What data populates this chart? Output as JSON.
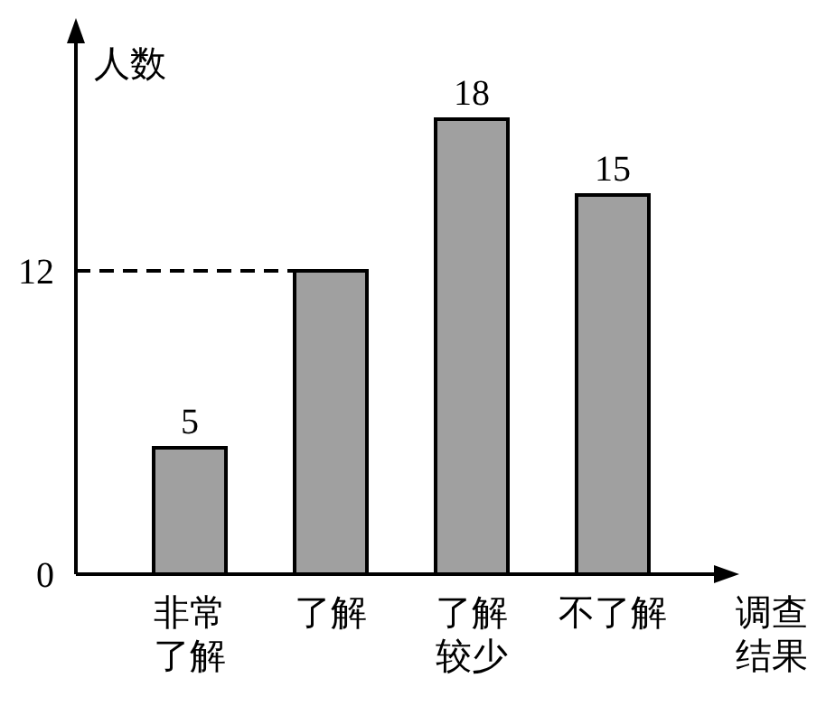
{
  "chart_data": {
    "type": "bar",
    "ylabel": "人数",
    "xlabel": "调查结果",
    "categories": [
      "非常了解",
      "了解",
      "了解较少",
      "不了解"
    ],
    "values": [
      5,
      12,
      18,
      15
    ],
    "value_labels": [
      "5",
      null,
      "18",
      "15"
    ],
    "color": "#a0a0a0",
    "ylim": [
      0,
      21
    ],
    "yticks": [
      0,
      12
    ],
    "ref_lines": [
      {
        "axis": "y",
        "value": 12,
        "line_style": "dashed",
        "color": "#000000"
      }
    ]
  }
}
